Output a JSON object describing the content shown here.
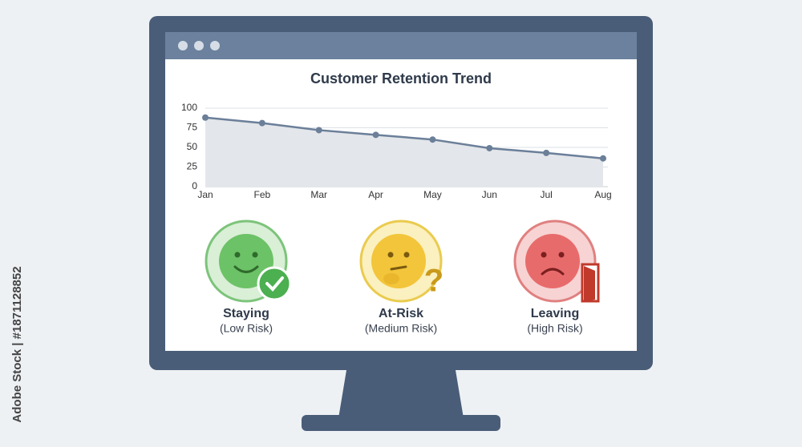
{
  "chart_data": {
    "type": "line",
    "title": "Customer Retention Trend",
    "categories": [
      "Jan",
      "Feb",
      "Mar",
      "Apr",
      "May",
      "Jun",
      "Jul",
      "Aug"
    ],
    "values": [
      88,
      81,
      72,
      66,
      60,
      49,
      43,
      36
    ],
    "color": "#6b7f99",
    "area_color": "#e3e6ea",
    "ylim": [
      0,
      100
    ],
    "yticks": [
      0,
      25,
      50,
      75,
      100
    ],
    "grid": true
  },
  "cards": [
    {
      "label": "Staying",
      "sublabel": "(Low Risk)"
    },
    {
      "label": "At-Risk",
      "sublabel": "(Medium Risk)"
    },
    {
      "label": "Leaving",
      "sublabel": "(High Risk)"
    }
  ],
  "watermark": "Adobe Stock | #1871128852"
}
